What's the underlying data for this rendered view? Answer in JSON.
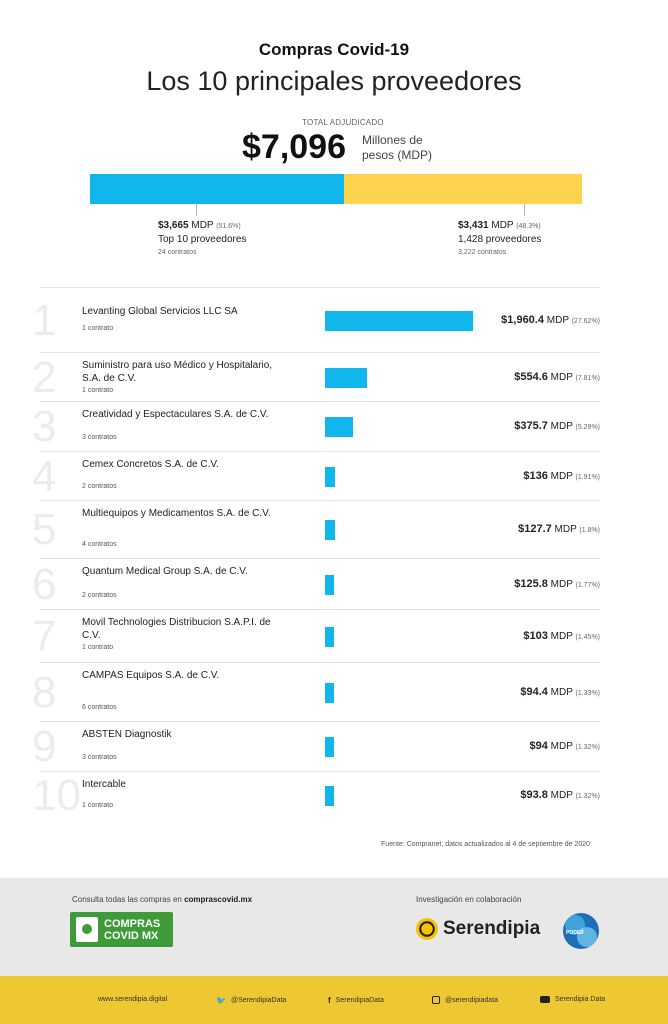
{
  "header": {
    "kicker": "Compras Covid-19",
    "title": "Los 10 principales proveedores",
    "total_label": "TOTAL ADJUDICADO",
    "total_value": "$7,096",
    "total_unit": "Millones de pesos (MDP)"
  },
  "split": {
    "left": {
      "value": "$3,665",
      "unit": "MDP",
      "pct": "(51.6%)",
      "label": "Top 10 proveedores",
      "contracts": "24 contratos",
      "share": 51.6
    },
    "right": {
      "value": "$3,431",
      "unit": "MDP",
      "pct": "(48.3%)",
      "label": "1,428 proveedores",
      "contracts": "3,222 contratos",
      "share": 48.3
    }
  },
  "chart_data": {
    "type": "bar",
    "title": "Los 10 principales proveedores",
    "unit": "MDP",
    "colors": {
      "bar": "#11b7ec",
      "other": "#ffd44c"
    },
    "categories": [
      "Levanting Global Servicios LLC SA",
      "Suministro para uso Médico y Hospitalario, S.A. de C.V.",
      "Creatividad y Espectaculares S.A. de C.V.",
      "Cemex Concretos S.A. de C.V.",
      "Multiequipos y Medicamentos S.A. de C.V.",
      "Quantum Medical Group S.A. de C.V.",
      "Movil Technologies Distribucion S.A.P.I. de C.V.",
      "CAMPAS Equipos S.A. de C.V.",
      "ABSTEN Diagnostik",
      "Intercable"
    ],
    "values": [
      1960.4,
      554.6,
      375.7,
      136,
      127.7,
      125.8,
      103,
      94.4,
      94,
      93.8
    ],
    "rows": [
      {
        "rank": "1",
        "name": "Levanting Global Servicios LLC SA",
        "contracts": "1 contrato",
        "amount": "$1,960.4",
        "pct": "(27.62%)"
      },
      {
        "rank": "2",
        "name": "Suministro para uso Médico y Hospitalario, S.A. de C.V.",
        "contracts": "1 contrato",
        "amount": "$554.6",
        "pct": "(7.81%)"
      },
      {
        "rank": "3",
        "name": "Creatividad y Espectaculares S.A. de C.V.",
        "contracts": "3 contratos",
        "amount": "$375.7",
        "pct": "(5.29%)"
      },
      {
        "rank": "4",
        "name": "Cemex Concretos S.A. de C.V.",
        "contracts": "2 contratos",
        "amount": "$136",
        "pct": "(1.91%)"
      },
      {
        "rank": "5",
        "name": "Multiequipos y Medicamentos S.A. de C.V.",
        "contracts": "4 contratos",
        "amount": "$127.7",
        "pct": "(1.8%)"
      },
      {
        "rank": "6",
        "name": "Quantum Medical Group S.A. de C.V.",
        "contracts": "2 contratos",
        "amount": "$125.8",
        "pct": "(1.77%)"
      },
      {
        "rank": "7",
        "name": "Movil Technologies Distribucion S.A.P.I. de C.V.",
        "contracts": "1 contrato",
        "amount": "$103",
        "pct": "(1.45%)"
      },
      {
        "rank": "8",
        "name": "CAMPAS Equipos S.A. de C.V.",
        "contracts": "6 contratos",
        "amount": "$94.4",
        "pct": "(1.33%)"
      },
      {
        "rank": "9",
        "name": "ABSTEN Diagnostik",
        "contracts": "3 contratos",
        "amount": "$94",
        "pct": "(1.32%)"
      },
      {
        "rank": "10",
        "name": "Intercable",
        "contracts": "1 contrato",
        "amount": "$93.8",
        "pct": "(1.32%)"
      }
    ],
    "amount_unit": "MDP"
  },
  "source": "Fuente: Compranet, datos actualizados al 4 de septiembre de 2020",
  "footer": {
    "consulta_text": "Consulta todas las compras en ",
    "consulta_link": "comprascovid.mx",
    "logo_line1": "COMPRAS",
    "logo_line2": "COVID MX",
    "investig": "Investigación en colaboración",
    "serendipia": "Serendipia",
    "poder": "PODER",
    "links": {
      "web": "www.serendipia.digital",
      "twitter": "@SerendipiaData",
      "facebook": "SerendipiaData",
      "instagram": "@serendipiadata",
      "youtube": "Serendipia Data"
    }
  }
}
